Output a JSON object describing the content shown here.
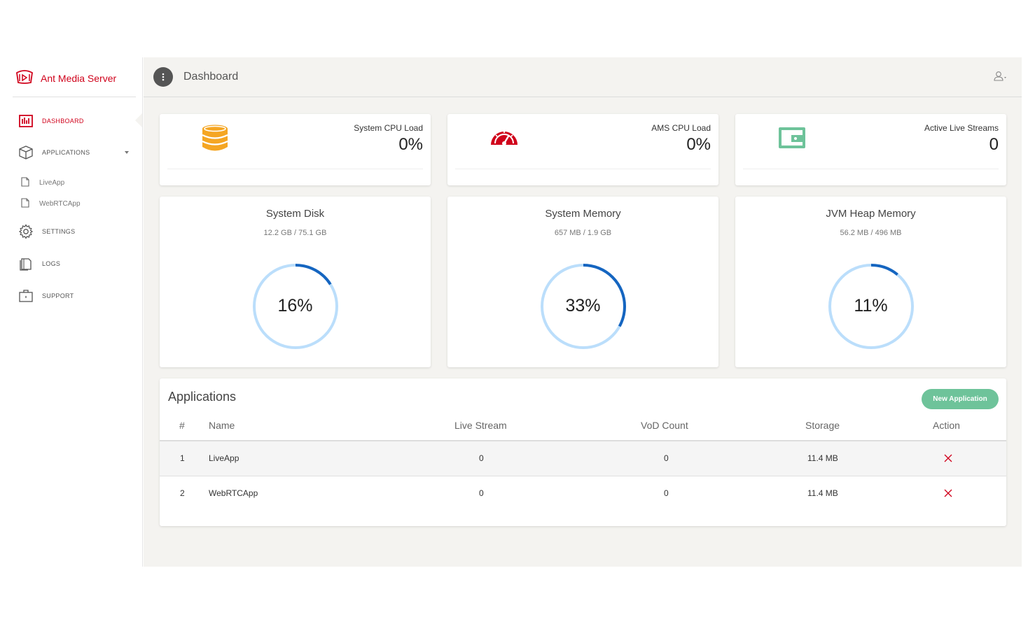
{
  "brand": {
    "name": "Ant Media Server",
    "color": "#d0021b"
  },
  "sidebar": {
    "items": [
      {
        "label": "DASHBOARD",
        "icon": "dashboard-icon",
        "active": true
      },
      {
        "label": "APPLICATIONS",
        "icon": "box-icon"
      },
      {
        "label": "SETTINGS",
        "icon": "gear-icon"
      },
      {
        "label": "LOGS",
        "icon": "logs-icon"
      },
      {
        "label": "SUPPORT",
        "icon": "support-icon"
      }
    ],
    "apps": [
      {
        "label": "LiveApp",
        "icon": "file-icon"
      },
      {
        "label": "WebRTCApp",
        "icon": "file-icon"
      }
    ]
  },
  "header": {
    "title": "Dashboard",
    "menu_icon": "more-vert-icon",
    "user_icon": "user-icon"
  },
  "stats": [
    {
      "label": "System CPU Load",
      "value": "0%",
      "icon": "database-icon",
      "color": "#f5a623"
    },
    {
      "label": "AMS CPU Load",
      "value": "0%",
      "icon": "speedometer-icon",
      "color": "#d0021b"
    },
    {
      "label": "Active Live Streams",
      "value": "0",
      "icon": "wallet-icon",
      "color": "#6ec39a"
    }
  ],
  "gauges": [
    {
      "title": "System Disk",
      "subtitle": "12.2 GB / 75.1 GB",
      "percent_label": "16%",
      "fraction": 0.16
    },
    {
      "title": "System Memory",
      "subtitle": "657 MB / 1.9 GB",
      "percent_label": "33%",
      "fraction": 0.33
    },
    {
      "title": "JVM Heap Memory",
      "subtitle": "56.2 MB / 496 MB",
      "percent_label": "11%",
      "fraction": 0.11
    }
  ],
  "gauge_colors": {
    "track": "#bbdefb",
    "progress": "#1565c0"
  },
  "applications": {
    "title": "Applications",
    "new_button": "New Application",
    "button_color": "#6ec39a",
    "columns": [
      "#",
      "Name",
      "Live Stream",
      "VoD Count",
      "Storage",
      "Action"
    ],
    "rows": [
      {
        "index": "1",
        "name": "LiveApp",
        "live": "0",
        "vod": "0",
        "storage": "11.4 MB"
      },
      {
        "index": "2",
        "name": "WebRTCApp",
        "live": "0",
        "vod": "0",
        "storage": "11.4 MB"
      }
    ],
    "delete_icon": "close-icon",
    "delete_color": "#d0021b"
  }
}
